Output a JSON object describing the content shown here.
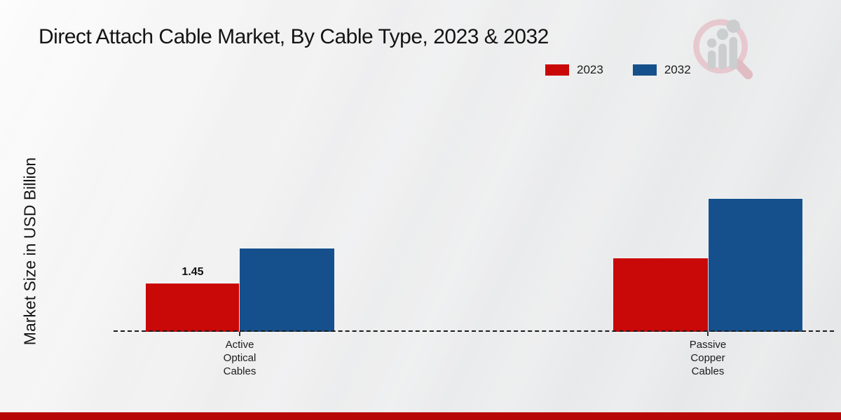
{
  "title": "Direct Attach Cable Market, By Cable Type, 2023 & 2032",
  "y_axis": {
    "label": "Market Size in USD Billion"
  },
  "legend": {
    "items": [
      {
        "label": "2023",
        "color": "#c90808"
      },
      {
        "label": "2032",
        "color": "#15508c"
      }
    ]
  },
  "chart_data": {
    "type": "bar",
    "title": "Direct Attach Cable Market, By Cable Type, 2023 & 2032",
    "categories": [
      "Active Optical Cables",
      "Passive Copper Cables"
    ],
    "series": [
      {
        "name": "2023",
        "color": "#c90808",
        "values": [
          1.45,
          2.2
        ],
        "labels": [
          "1.45",
          ""
        ]
      },
      {
        "name": "2032",
        "color": "#15508c",
        "values": [
          2.5,
          4.0
        ],
        "labels": [
          "",
          ""
        ]
      }
    ],
    "xlabel": "",
    "ylabel": "Market Size in USD Billion",
    "ylim": [
      0,
      4.3
    ],
    "grid": false,
    "legend_position": "top-right",
    "baseline_style": "dashed"
  },
  "footer": {
    "accent_color": "#b70606"
  },
  "logo": {
    "name": "magnifier-bar-chart-logo"
  }
}
